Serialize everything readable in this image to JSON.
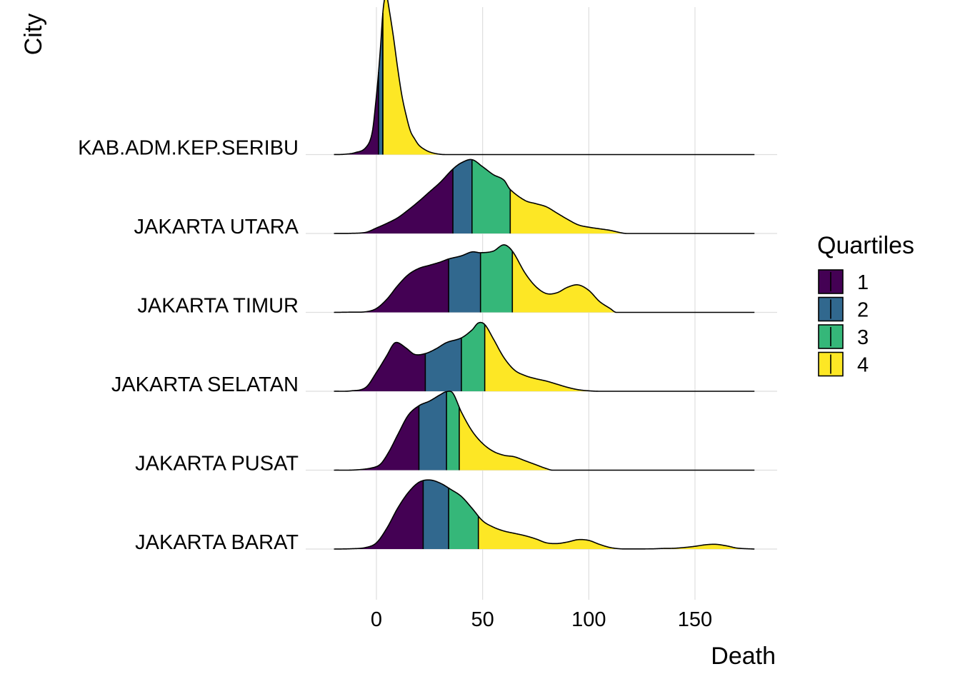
{
  "chart_data": {
    "type": "ridgeline density",
    "xlabel": "Death",
    "ylabel": "City",
    "xlim": [
      -20,
      178
    ],
    "x_ticks": [
      0,
      50,
      100,
      150
    ],
    "grid": "vertical major gridlines only",
    "legend": {
      "title": "Quartiles",
      "position": "right",
      "entries": [
        {
          "label": "1",
          "color": "#440154"
        },
        {
          "label": "2",
          "color": "#31688E"
        },
        {
          "label": "3",
          "color": "#35B779"
        },
        {
          "label": "4",
          "color": "#FDE725"
        }
      ]
    },
    "series": [
      {
        "name": "JAKARTA BARAT",
        "quartile_breaks": [
          22,
          34,
          48
        ],
        "density": [
          [
            -20,
            0
          ],
          [
            -12,
            0.004
          ],
          [
            -5,
            0.02
          ],
          [
            0,
            0.08
          ],
          [
            5,
            0.27
          ],
          [
            10,
            0.52
          ],
          [
            15,
            0.72
          ],
          [
            20,
            0.85
          ],
          [
            25,
            0.88
          ],
          [
            30,
            0.84
          ],
          [
            35,
            0.76
          ],
          [
            40,
            0.67
          ],
          [
            45,
            0.52
          ],
          [
            50,
            0.36
          ],
          [
            55,
            0.28
          ],
          [
            60,
            0.23
          ],
          [
            65,
            0.2
          ],
          [
            70,
            0.17
          ],
          [
            75,
            0.13
          ],
          [
            80,
            0.08
          ],
          [
            85,
            0.07
          ],
          [
            90,
            0.09
          ],
          [
            95,
            0.12
          ],
          [
            100,
            0.11
          ],
          [
            105,
            0.06
          ],
          [
            110,
            0.02
          ],
          [
            115,
            0.003
          ],
          [
            120,
            0.002
          ],
          [
            130,
            0.003
          ],
          [
            135,
            0.008
          ],
          [
            140,
            0.01
          ],
          [
            145,
            0.02
          ],
          [
            150,
            0.035
          ],
          [
            155,
            0.055
          ],
          [
            160,
            0.06
          ],
          [
            165,
            0.04
          ],
          [
            170,
            0.012
          ],
          [
            178,
            0
          ]
        ]
      },
      {
        "name": "JAKARTA PUSAT",
        "quartile_breaks": [
          20,
          33,
          39
        ],
        "density": [
          [
            -20,
            0
          ],
          [
            -10,
            0.003
          ],
          [
            -2,
            0.03
          ],
          [
            2,
            0.08
          ],
          [
            6,
            0.24
          ],
          [
            10,
            0.45
          ],
          [
            15,
            0.7
          ],
          [
            20,
            0.82
          ],
          [
            25,
            0.88
          ],
          [
            30,
            0.96
          ],
          [
            33,
            1.0
          ],
          [
            36,
            0.98
          ],
          [
            40,
            0.74
          ],
          [
            45,
            0.5
          ],
          [
            50,
            0.34
          ],
          [
            55,
            0.24
          ],
          [
            60,
            0.19
          ],
          [
            65,
            0.17
          ],
          [
            70,
            0.12
          ],
          [
            75,
            0.07
          ],
          [
            80,
            0.02
          ],
          [
            83,
            0
          ],
          [
            178,
            0
          ]
        ]
      },
      {
        "name": "JAKARTA SELATAN",
        "quartile_breaks": [
          23,
          40,
          51
        ],
        "density": [
          [
            -20,
            0
          ],
          [
            -12,
            0.005
          ],
          [
            -5,
            0.05
          ],
          [
            0,
            0.24
          ],
          [
            5,
            0.46
          ],
          [
            8,
            0.6
          ],
          [
            10,
            0.62
          ],
          [
            14,
            0.55
          ],
          [
            18,
            0.47
          ],
          [
            23,
            0.48
          ],
          [
            28,
            0.54
          ],
          [
            33,
            0.62
          ],
          [
            40,
            0.68
          ],
          [
            45,
            0.78
          ],
          [
            48,
            0.87
          ],
          [
            51,
            0.85
          ],
          [
            55,
            0.67
          ],
          [
            60,
            0.43
          ],
          [
            65,
            0.27
          ],
          [
            70,
            0.2
          ],
          [
            75,
            0.16
          ],
          [
            80,
            0.13
          ],
          [
            85,
            0.09
          ],
          [
            90,
            0.05
          ],
          [
            95,
            0.02
          ],
          [
            100,
            0.006
          ],
          [
            105,
            0
          ],
          [
            178,
            0
          ]
        ]
      },
      {
        "name": "JAKARTA TIMUR",
        "quartile_breaks": [
          34,
          49,
          64
        ],
        "density": [
          [
            -20,
            0
          ],
          [
            -12,
            0.003
          ],
          [
            -5,
            0.008
          ],
          [
            0,
            0.05
          ],
          [
            5,
            0.17
          ],
          [
            10,
            0.34
          ],
          [
            15,
            0.48
          ],
          [
            20,
            0.56
          ],
          [
            25,
            0.6
          ],
          [
            30,
            0.64
          ],
          [
            34,
            0.68
          ],
          [
            40,
            0.72
          ],
          [
            45,
            0.77
          ],
          [
            49,
            0.76
          ],
          [
            55,
            0.78
          ],
          [
            60,
            0.86
          ],
          [
            64,
            0.78
          ],
          [
            70,
            0.5
          ],
          [
            75,
            0.33
          ],
          [
            80,
            0.24
          ],
          [
            85,
            0.25
          ],
          [
            90,
            0.32
          ],
          [
            95,
            0.35
          ],
          [
            100,
            0.28
          ],
          [
            105,
            0.14
          ],
          [
            110,
            0.05
          ],
          [
            113,
            0
          ],
          [
            178,
            0
          ]
        ]
      },
      {
        "name": "JAKARTA UTARA",
        "quartile_breaks": [
          36,
          45,
          63
        ],
        "density": [
          [
            -20,
            0
          ],
          [
            -12,
            0.002
          ],
          [
            -5,
            0.015
          ],
          [
            0,
            0.07
          ],
          [
            5,
            0.13
          ],
          [
            10,
            0.2
          ],
          [
            15,
            0.3
          ],
          [
            20,
            0.41
          ],
          [
            25,
            0.53
          ],
          [
            30,
            0.65
          ],
          [
            36,
            0.82
          ],
          [
            40,
            0.9
          ],
          [
            45,
            0.94
          ],
          [
            50,
            0.85
          ],
          [
            55,
            0.75
          ],
          [
            60,
            0.68
          ],
          [
            63,
            0.56
          ],
          [
            70,
            0.42
          ],
          [
            75,
            0.38
          ],
          [
            80,
            0.34
          ],
          [
            85,
            0.26
          ],
          [
            90,
            0.18
          ],
          [
            95,
            0.11
          ],
          [
            100,
            0.08
          ],
          [
            105,
            0.06
          ],
          [
            110,
            0.04
          ],
          [
            115,
            0.01
          ],
          [
            118,
            0
          ],
          [
            178,
            0
          ]
        ]
      },
      {
        "name": "KAB.ADM.KEP.SERIBU",
        "quartile_breaks": [
          1,
          3,
          3
        ],
        "density": [
          [
            -20,
            0
          ],
          [
            -15,
            0.004
          ],
          [
            -10,
            0.025
          ],
          [
            -5,
            0.09
          ],
          [
            -2,
            0.28
          ],
          [
            0,
            0.75
          ],
          [
            1,
            1.05
          ],
          [
            2,
            1.4
          ],
          [
            3,
            1.8
          ],
          [
            4,
            2.0
          ],
          [
            5,
            2.0
          ],
          [
            6,
            1.85
          ],
          [
            8,
            1.5
          ],
          [
            10,
            1.1
          ],
          [
            12,
            0.75
          ],
          [
            14,
            0.5
          ],
          [
            16,
            0.3
          ],
          [
            18,
            0.2
          ],
          [
            20,
            0.12
          ],
          [
            23,
            0.06
          ],
          [
            26,
            0.025
          ],
          [
            30,
            0.004
          ],
          [
            33,
            0
          ],
          [
            178,
            0
          ]
        ]
      }
    ]
  }
}
